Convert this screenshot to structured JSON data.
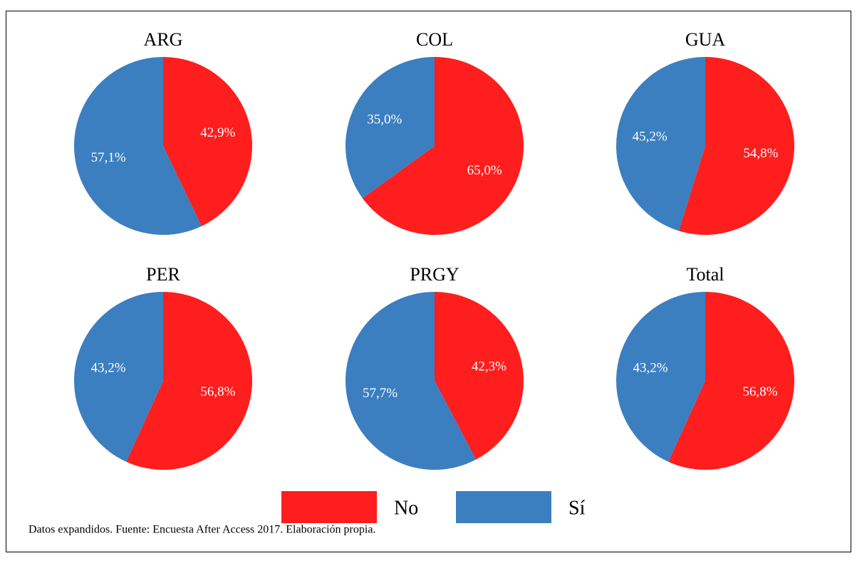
{
  "chart_data": [
    {
      "type": "pie",
      "title": "ARG",
      "categories": [
        "No",
        "Sí"
      ],
      "values": [
        42.9,
        57.1
      ],
      "value_labels": [
        "42,9%",
        "57,1%"
      ],
      "colors": [
        "#fe1e1e",
        "#3b7fc0"
      ]
    },
    {
      "type": "pie",
      "title": "COL",
      "categories": [
        "No",
        "Sí"
      ],
      "values": [
        65.0,
        35.0
      ],
      "value_labels": [
        "65,0%",
        "35,0%"
      ],
      "colors": [
        "#fe1e1e",
        "#3b7fc0"
      ]
    },
    {
      "type": "pie",
      "title": "GUA",
      "categories": [
        "No",
        "Sí"
      ],
      "values": [
        54.8,
        45.2
      ],
      "value_labels": [
        "54,8%",
        "45,2%"
      ],
      "colors": [
        "#fe1e1e",
        "#3b7fc0"
      ]
    },
    {
      "type": "pie",
      "title": "PER",
      "categories": [
        "No",
        "Sí"
      ],
      "values": [
        56.8,
        43.2
      ],
      "value_labels": [
        "56,8%",
        "43,2%"
      ],
      "colors": [
        "#fe1e1e",
        "#3b7fc0"
      ]
    },
    {
      "type": "pie",
      "title": "PRGY",
      "categories": [
        "No",
        "Sí"
      ],
      "values": [
        42.3,
        57.7
      ],
      "value_labels": [
        "42,3%",
        "57,7%"
      ],
      "colors": [
        "#fe1e1e",
        "#3b7fc0"
      ]
    },
    {
      "type": "pie",
      "title": "Total",
      "categories": [
        "No",
        "Sí"
      ],
      "values": [
        56.8,
        43.2
      ],
      "value_labels": [
        "56,8%",
        "43,2%"
      ],
      "colors": [
        "#fe1e1e",
        "#3b7fc0"
      ]
    }
  ],
  "caption": "Datos expandidos. Fuente: Encuesta After Access 2017. Elaboración propia."
}
